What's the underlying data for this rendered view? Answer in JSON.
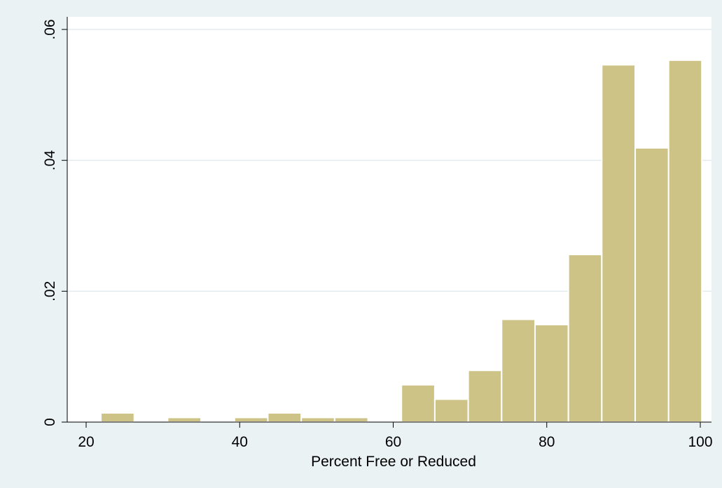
{
  "chart_data": {
    "type": "bar",
    "xlabel": "Percent Free or Reduced",
    "ylabel": "",
    "xlim": [
      20,
      100
    ],
    "ylim": [
      0,
      0.06
    ],
    "x_ticks": [
      {
        "value": 20,
        "label": "20"
      },
      {
        "value": 40,
        "label": "40"
      },
      {
        "value": 60,
        "label": "60"
      },
      {
        "value": 80,
        "label": "80"
      },
      {
        "value": 100,
        "label": "100"
      }
    ],
    "y_ticks": [
      {
        "value": 0,
        "label": "0"
      },
      {
        "value": 0.02,
        "label": ".02"
      },
      {
        "value": 0.04,
        "label": ".04"
      },
      {
        "value": 0.06,
        "label": ".06"
      }
    ],
    "grid": "horizontal",
    "bin_edges": [
      21.92,
      26.27,
      30.62,
      34.97,
      39.32,
      43.67,
      48.02,
      52.37,
      56.72,
      61.07,
      65.42,
      69.77,
      74.12,
      78.47,
      82.82,
      87.17,
      91.52,
      95.87,
      100.2
    ],
    "values": [
      0.0014,
      0,
      0.0007,
      0,
      0.0007,
      0.0014,
      0.0007,
      0.0007,
      0,
      0.0057,
      0.0035,
      0.0079,
      0.0157,
      0.0149,
      0.0256,
      0.0546,
      0.0419,
      0.0553
    ],
    "colors": {
      "background": "#eaf2f3",
      "plot_area": "#ffffff",
      "bar_fill": "#cdc387",
      "bar_stroke": "#ffffff",
      "grid": "#e2ecee",
      "axis": "#000000"
    }
  }
}
